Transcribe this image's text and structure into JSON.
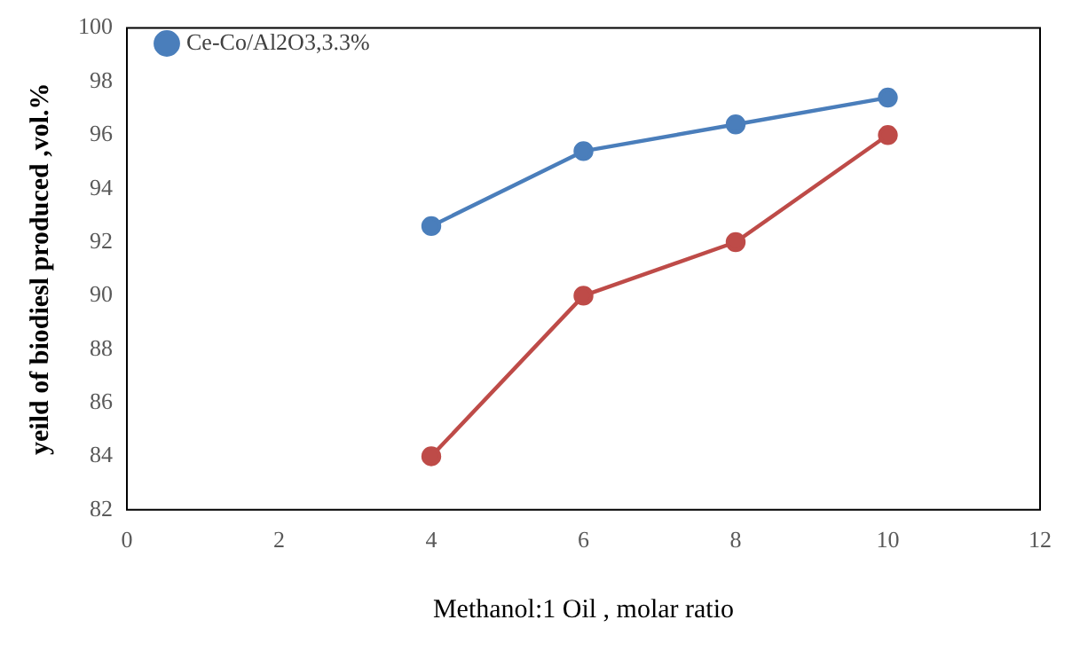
{
  "chart_data": {
    "type": "line",
    "xlabel": "Methanol:1 Oil , molar ratio",
    "ylabel": "yeild of biodiesl produced ,vol.%",
    "x": [
      4,
      6,
      8,
      10
    ],
    "series": [
      {
        "name": "Ce-Co/Al2O3,3.3%",
        "color": "#4a7ebb",
        "values": [
          92.6,
          95.4,
          96.4,
          97.4
        ]
      },
      {
        "color": "#be4b48",
        "values": [
          84,
          90,
          92,
          96
        ]
      }
    ],
    "xlim": [
      0,
      12
    ],
    "xticks": [
      0,
      2,
      4,
      6,
      8,
      10,
      12
    ],
    "ylim": [
      82,
      100
    ],
    "yticks": [
      82,
      84,
      86,
      88,
      90,
      92,
      94,
      96,
      98,
      100
    ],
    "grid": false,
    "legend": "top left",
    "marker": "circle",
    "line_style": "solid"
  }
}
